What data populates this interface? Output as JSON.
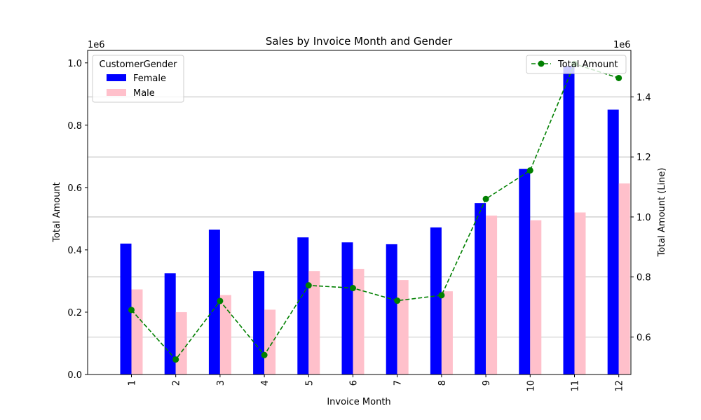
{
  "chart_data": {
    "type": "bar",
    "title": "Sales by Invoice Month and Gender",
    "xlabel": "Invoice Month",
    "ylabel": "Total Amount",
    "y2label": "Total Amount (Line)",
    "y_multiplier": "1e6",
    "y2_multiplier": "1e6",
    "categories": [
      "1",
      "2",
      "3",
      "4",
      "5",
      "6",
      "7",
      "8",
      "9",
      "10",
      "11",
      "12"
    ],
    "legend_title": "CustomerGender",
    "legend_placement": "top-left",
    "line_legend_placement": "top-right",
    "ylim": [
      0,
      1.04
    ],
    "y2lim": [
      0.475,
      1.555
    ],
    "yticks": [
      "0.0",
      "0.2",
      "0.4",
      "0.6",
      "0.8",
      "1.0"
    ],
    "y2ticks": [
      "0.6",
      "0.8",
      "1.0",
      "1.2",
      "1.4"
    ],
    "grid": "horizontal (secondary axis)",
    "series": [
      {
        "name": "Female",
        "color": "#0000ff",
        "values": [
          0.42,
          0.325,
          0.465,
          0.332,
          0.44,
          0.424,
          0.418,
          0.472,
          0.55,
          0.66,
          0.99,
          0.85
        ]
      },
      {
        "name": "Male",
        "color": "#ffc0cb",
        "values": [
          0.273,
          0.2,
          0.255,
          0.208,
          0.332,
          0.339,
          0.303,
          0.267,
          0.51,
          0.495,
          0.52,
          0.613
        ]
      }
    ],
    "line_series": {
      "name": "Total Amount",
      "color": "#008000",
      "axis": "secondary",
      "values": [
        0.69,
        0.525,
        0.72,
        0.54,
        0.772,
        0.763,
        0.721,
        0.739,
        1.06,
        1.155,
        1.51,
        1.463
      ]
    }
  }
}
